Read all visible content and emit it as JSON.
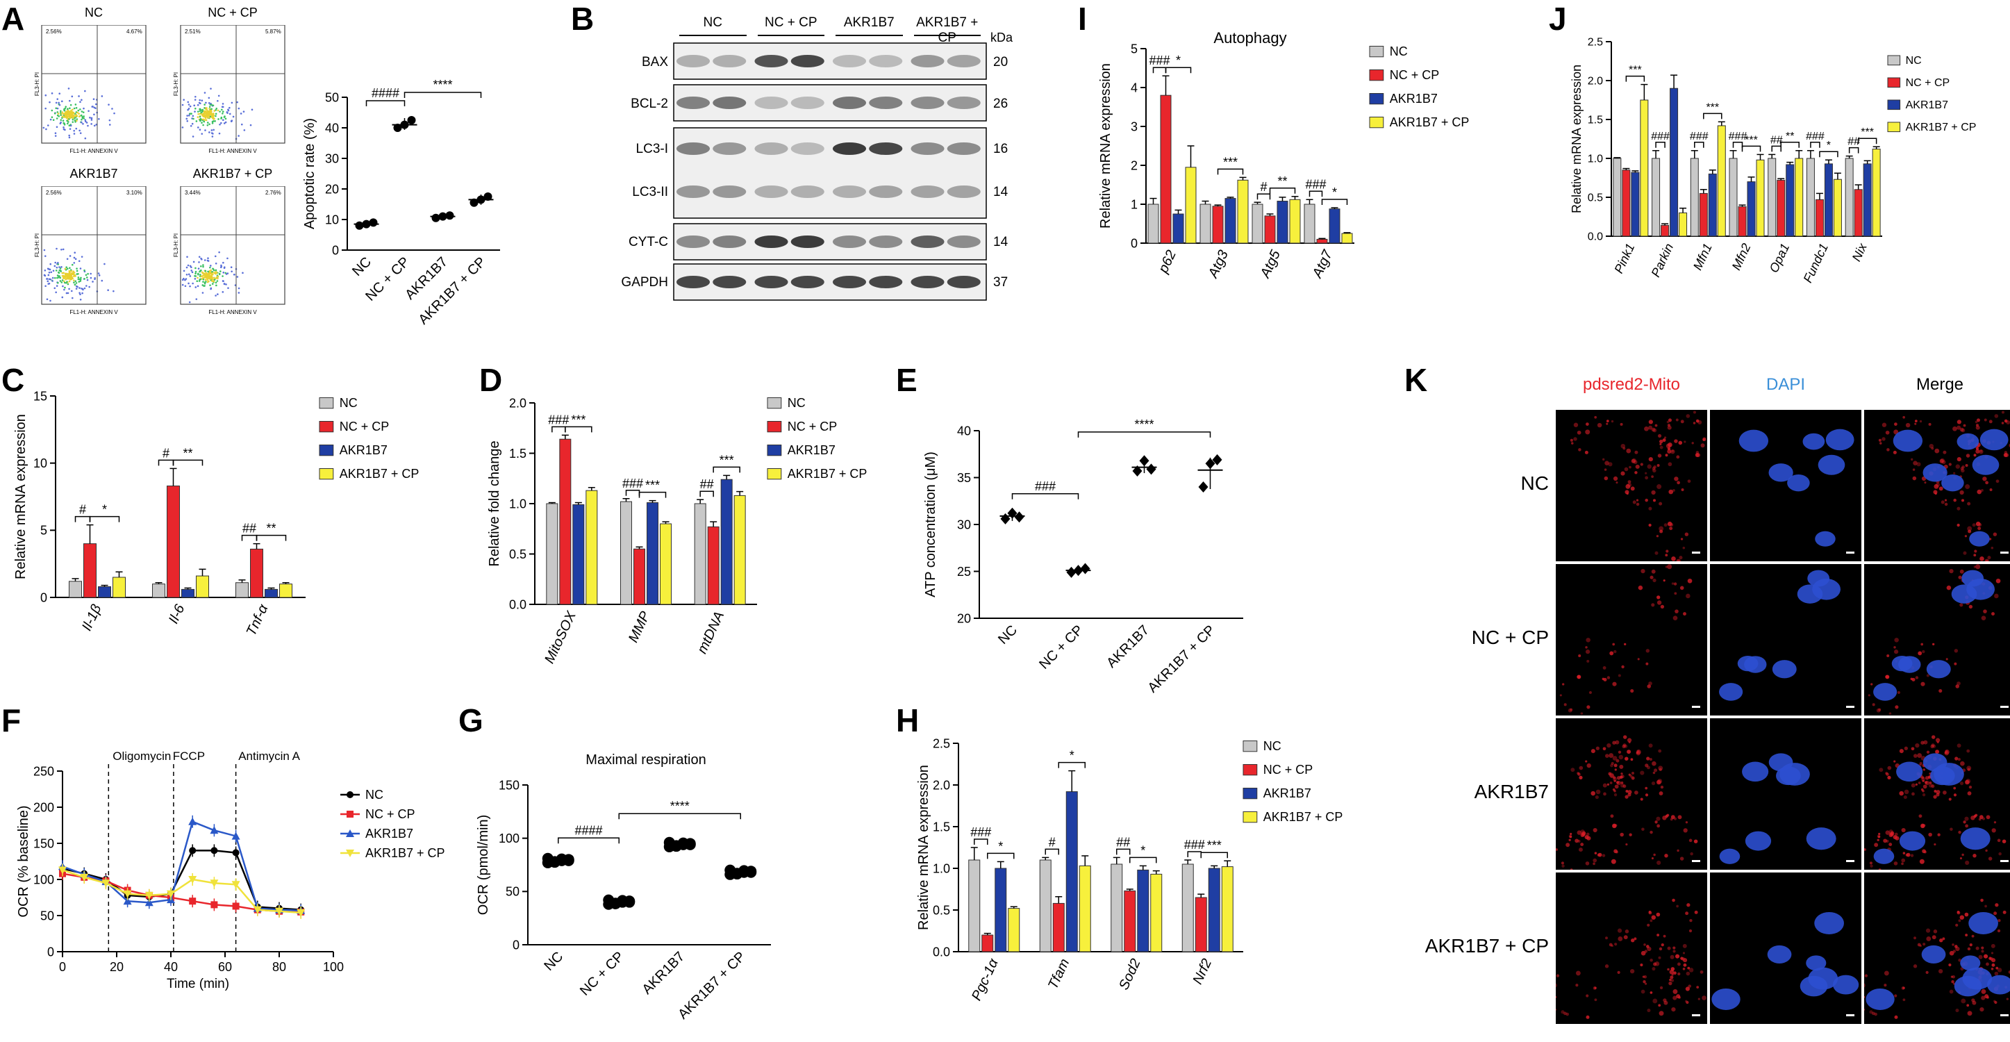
{
  "figure": {
    "panel_labels": [
      "A",
      "B",
      "C",
      "D",
      "E",
      "F",
      "G",
      "H",
      "I",
      "J",
      "K"
    ],
    "groups": [
      "NC",
      "NC + CP",
      "AKR1B7",
      "AKR1B7 + CP"
    ],
    "colors": {
      "NC": "#c8c8c8",
      "NC + CP": "#e8262c",
      "AKR1B7": "#1f3ea3",
      "AKR1B7 + CP": "#f7f03c"
    }
  },
  "panel_a": {
    "flow_titles": [
      "NC",
      "NC + CP",
      "AKR1B7",
      "AKR1B7 + CP"
    ],
    "flow_x_axis": "FL1-H: ANNEXIN V",
    "flow_y_axis": "FL3-H: PI",
    "flow_quadrants": [
      [
        "2.56%",
        "4.67%"
      ],
      [
        "2.51%",
        "5.87%"
      ],
      [
        "2.56%",
        "3.10%"
      ],
      [
        "3.44%",
        "2.76%"
      ]
    ],
    "chart_data": {
      "type": "scatter",
      "ylabel": "Apoptotic rate (%)",
      "ylim": [
        0,
        50
      ],
      "yticks": [
        0,
        10,
        20,
        30,
        40,
        50
      ],
      "categories": [
        "NC",
        "NC + CP",
        "AKR1B7",
        "AKR1B7 + CP"
      ],
      "values": [
        8.5,
        41,
        11,
        16.5
      ],
      "points": [
        [
          8,
          8.5,
          9
        ],
        [
          40,
          41,
          42.5
        ],
        [
          10.5,
          11,
          11.3
        ],
        [
          15.5,
          16.5,
          17.5
        ]
      ],
      "significance": [
        {
          "label": "####",
          "pair": [
            0,
            1
          ]
        },
        {
          "label": "****",
          "pair": [
            1,
            3
          ]
        }
      ]
    }
  },
  "panel_b": {
    "header_groups": [
      "NC",
      "NC + CP",
      "AKR1B7",
      "AKR1B7 + CP"
    ],
    "kda_label": "kDa",
    "blots": [
      {
        "name": "BAX",
        "kda": "20"
      },
      {
        "name": "BCL-2",
        "kda": "26"
      },
      {
        "name": "LC3-I",
        "kda": "16"
      },
      {
        "name": "LC3-II",
        "kda": "14"
      },
      {
        "name": "CYT-C",
        "kda": "14"
      },
      {
        "name": "GAPDH",
        "kda": "37"
      }
    ]
  },
  "panel_c": {
    "chart_data": {
      "type": "bar",
      "ylabel": "Relative mRNA expression",
      "ylim": [
        0,
        15
      ],
      "yticks": [
        0,
        5,
        10,
        15
      ],
      "categories": [
        "Il-1β",
        "Il-6",
        "Tnf-α"
      ],
      "series": [
        {
          "name": "NC",
          "values": [
            1.2,
            1.0,
            1.1
          ],
          "err": [
            0.2,
            0.1,
            0.2
          ]
        },
        {
          "name": "NC + CP",
          "values": [
            4.0,
            8.3,
            3.6
          ],
          "err": [
            1.4,
            1.3,
            0.4
          ]
        },
        {
          "name": "AKR1B7",
          "values": [
            0.8,
            0.6,
            0.6
          ],
          "err": [
            0.1,
            0.1,
            0.1
          ]
        },
        {
          "name": "AKR1B7 + CP",
          "values": [
            1.5,
            1.6,
            1.0
          ],
          "err": [
            0.4,
            0.5,
            0.1
          ]
        }
      ],
      "significance": [
        {
          "cat": 0,
          "pairs": [
            {
              "label": "#",
              "a": 0,
              "b": 1
            },
            {
              "label": "*",
              "a": 1,
              "b": 3
            }
          ]
        },
        {
          "cat": 1,
          "pairs": [
            {
              "label": "#",
              "a": 0,
              "b": 1
            },
            {
              "label": "**",
              "a": 1,
              "b": 3
            }
          ]
        },
        {
          "cat": 2,
          "pairs": [
            {
              "label": "##",
              "a": 0,
              "b": 1
            },
            {
              "label": "**",
              "a": 1,
              "b": 3
            }
          ]
        }
      ]
    }
  },
  "panel_d": {
    "chart_data": {
      "type": "bar",
      "ylabel": "Relative fold change",
      "ylim": [
        0.0,
        2.0
      ],
      "yticks": [
        "0.0",
        "0.5",
        "1.0",
        "1.5",
        "2.0"
      ],
      "categories": [
        "MitoSOX",
        "MMP",
        "mtDNA"
      ],
      "series": [
        {
          "name": "NC",
          "values": [
            1.0,
            1.02,
            1.0
          ],
          "err": [
            0.01,
            0.03,
            0.04
          ]
        },
        {
          "name": "NC + CP",
          "values": [
            1.64,
            0.55,
            0.77
          ],
          "err": [
            0.04,
            0.02,
            0.05
          ]
        },
        {
          "name": "AKR1B7",
          "values": [
            0.99,
            1.01,
            1.24
          ],
          "err": [
            0.02,
            0.02,
            0.04
          ]
        },
        {
          "name": "AKR1B7 + CP",
          "values": [
            1.13,
            0.8,
            1.08
          ],
          "err": [
            0.03,
            0.02,
            0.04
          ]
        }
      ],
      "significance": [
        {
          "cat": 0,
          "pairs": [
            {
              "label": "###",
              "a": 0,
              "b": 1
            },
            {
              "label": "***",
              "a": 1,
              "b": 3
            }
          ]
        },
        {
          "cat": 1,
          "pairs": [
            {
              "label": "###",
              "a": 0,
              "b": 1
            },
            {
              "label": "***",
              "a": 1,
              "b": 3
            }
          ]
        },
        {
          "cat": 2,
          "pairs": [
            {
              "label": "##",
              "a": 0,
              "b": 1
            },
            {
              "label": "***",
              "a": 1,
              "b": 3
            }
          ]
        }
      ]
    }
  },
  "panel_e": {
    "chart_data": {
      "type": "scatter",
      "ylabel": "ATP concentration (μM)",
      "ylim": [
        20,
        40
      ],
      "yticks": [
        20,
        25,
        30,
        35,
        40
      ],
      "categories": [
        "NC",
        "NC + CP",
        "AKR1B7",
        "AKR1B7 + CP"
      ],
      "values": [
        30.9,
        25.1,
        36.1,
        35.8
      ],
      "points": [
        [
          30.6,
          31.2,
          30.8
        ],
        [
          24.9,
          25.1,
          25.3
        ],
        [
          35.7,
          36.8,
          35.9
        ],
        [
          34.0,
          36.5,
          36.9
        ]
      ],
      "significance": [
        {
          "label": "###",
          "pair": [
            0,
            1
          ]
        },
        {
          "label": "****",
          "pair": [
            1,
            3
          ]
        }
      ]
    }
  },
  "panel_f": {
    "chart_data": {
      "type": "line",
      "xlabel": "Time (min)",
      "ylabel": "OCR (% baseline)",
      "xlim": [
        0,
        100
      ],
      "ylim": [
        0,
        250
      ],
      "xticks": [
        0,
        20,
        40,
        60,
        80,
        100
      ],
      "yticks": [
        0,
        50,
        100,
        150,
        200,
        250
      ],
      "annotations": [
        {
          "label": "Oligomycin",
          "x": 17
        },
        {
          "label": "FCCP",
          "x": 41
        },
        {
          "label": "Antimycin A",
          "x": 64
        }
      ],
      "x": [
        0,
        8,
        16,
        24,
        32,
        40,
        48,
        56,
        64,
        72,
        80,
        88
      ],
      "series": [
        {
          "name": "NC",
          "values": [
            115,
            108,
            100,
            78,
            76,
            80,
            140,
            140,
            137,
            62,
            60,
            58
          ]
        },
        {
          "name": "NC + CP",
          "values": [
            108,
            103,
            98,
            85,
            78,
            75,
            70,
            65,
            63,
            58,
            56,
            55
          ]
        },
        {
          "name": "AKR1B7",
          "values": [
            118,
            107,
            97,
            70,
            68,
            72,
            180,
            168,
            160,
            60,
            58,
            57
          ]
        },
        {
          "name": "AKR1B7 + CP",
          "values": [
            113,
            103,
            95,
            80,
            78,
            80,
            100,
            95,
            93,
            58,
            56,
            54
          ]
        }
      ]
    }
  },
  "panel_g": {
    "chart_data": {
      "type": "scatter",
      "title": "Maximal respiration",
      "ylabel": "OCR (pmol/min)",
      "ylim": [
        0,
        150
      ],
      "yticks": [
        0,
        50,
        100,
        150
      ],
      "categories": [
        "NC",
        "NC + CP",
        "AKR1B7",
        "AKR1B7 + CP"
      ],
      "values": [
        79,
        40,
        94,
        68
      ],
      "significance": [
        {
          "label": "####",
          "pair": [
            0,
            1
          ]
        },
        {
          "label": "****",
          "pair": [
            1,
            3
          ]
        }
      ]
    }
  },
  "panel_h": {
    "chart_data": {
      "type": "bar",
      "ylabel": "Relative mRNA expression",
      "ylim": [
        0.0,
        2.5
      ],
      "yticks": [
        "0.0",
        "0.5",
        "1.0",
        "1.5",
        "2.0",
        "2.5"
      ],
      "categories": [
        "Pgc-1α",
        "Tfam",
        "Sod2",
        "Nrf2"
      ],
      "series": [
        {
          "name": "NC",
          "values": [
            1.1,
            1.1,
            1.05,
            1.05
          ],
          "err": [
            0.15,
            0.03,
            0.08,
            0.05
          ]
        },
        {
          "name": "NC + CP",
          "values": [
            0.2,
            0.58,
            0.73,
            0.65
          ],
          "err": [
            0.02,
            0.08,
            0.02,
            0.04
          ]
        },
        {
          "name": "AKR1B7",
          "values": [
            1.0,
            1.92,
            0.98,
            1.0
          ],
          "err": [
            0.08,
            0.25,
            0.05,
            0.03
          ]
        },
        {
          "name": "AKR1B7 + CP",
          "values": [
            0.52,
            1.03,
            0.93,
            1.02
          ],
          "err": [
            0.02,
            0.12,
            0.04,
            0.07
          ]
        }
      ],
      "significance": [
        {
          "cat": 0,
          "pairs": [
            {
              "label": "###",
              "a": 0,
              "b": 1
            },
            {
              "label": "*",
              "a": 1,
              "b": 3
            }
          ]
        },
        {
          "cat": 1,
          "pairs": [
            {
              "label": "#",
              "a": 0,
              "b": 1
            },
            {
              "label": "*",
              "a": 1,
              "b": 3
            }
          ]
        },
        {
          "cat": 2,
          "pairs": [
            {
              "label": "##",
              "a": 0,
              "b": 1
            },
            {
              "label": "*",
              "a": 1,
              "b": 3
            }
          ]
        },
        {
          "cat": 3,
          "pairs": [
            {
              "label": "###",
              "a": 0,
              "b": 1
            },
            {
              "label": "***",
              "a": 1,
              "b": 3
            }
          ]
        }
      ]
    }
  },
  "panel_i": {
    "chart_data": {
      "type": "bar",
      "title": "Autophagy",
      "ylabel": "Relative mRNA expression",
      "ylim": [
        0,
        5
      ],
      "yticks": [
        0,
        1,
        2,
        3,
        4,
        5
      ],
      "categories": [
        "p62",
        "Atg3",
        "Atg5",
        "Atg7"
      ],
      "series": [
        {
          "name": "NC",
          "values": [
            1.0,
            1.0,
            1.0,
            1.0
          ],
          "err": [
            0.15,
            0.08,
            0.05,
            0.12
          ]
        },
        {
          "name": "NC + CP",
          "values": [
            3.8,
            0.95,
            0.7,
            0.1
          ],
          "err": [
            0.5,
            0.03,
            0.05,
            0.02
          ]
        },
        {
          "name": "AKR1B7",
          "values": [
            0.75,
            1.15,
            1.08,
            0.88
          ],
          "err": [
            0.1,
            0.03,
            0.1,
            0.03
          ]
        },
        {
          "name": "AKR1B7 + CP",
          "values": [
            1.95,
            1.62,
            1.12,
            0.25
          ],
          "err": [
            0.55,
            0.07,
            0.08,
            0.02
          ]
        }
      ],
      "significance": [
        {
          "cat": 0,
          "pairs": [
            {
              "label": "###",
              "a": 0,
              "b": 1
            },
            {
              "label": "*",
              "a": 1,
              "b": 3
            }
          ]
        },
        {
          "cat": 1,
          "pairs": [
            {
              "label": "***",
              "a": 1,
              "b": 3
            }
          ]
        },
        {
          "cat": 2,
          "pairs": [
            {
              "label": "#",
              "a": 0,
              "b": 1
            },
            {
              "label": "**",
              "a": 1,
              "b": 3
            }
          ]
        },
        {
          "cat": 3,
          "pairs": [
            {
              "label": "###",
              "a": 0,
              "b": 1
            },
            {
              "label": "*",
              "a": 1,
              "b": 3
            }
          ]
        }
      ]
    }
  },
  "panel_j": {
    "chart_data": {
      "type": "bar",
      "ylabel": "Relative mRNA expression",
      "ylim": [
        0.0,
        2.5
      ],
      "yticks": [
        "0.0",
        "0.5",
        "1.0",
        "1.5",
        "2.0",
        "2.5"
      ],
      "categories": [
        "Pink1",
        "Parkin",
        "Mfn1",
        "Mfn2",
        "Opa1",
        "Fundc1",
        "Nix"
      ],
      "series": [
        {
          "name": "NC",
          "values": [
            1.0,
            1.0,
            1.0,
            1.0,
            1.0,
            1.0,
            1.0
          ],
          "err": [
            0.01,
            0.1,
            0.1,
            0.1,
            0.05,
            0.1,
            0.03
          ]
        },
        {
          "name": "NC + CP",
          "values": [
            0.85,
            0.14,
            0.55,
            0.38,
            0.72,
            0.47,
            0.6
          ],
          "err": [
            0.02,
            0.02,
            0.05,
            0.02,
            0.02,
            0.08,
            0.06
          ]
        },
        {
          "name": "AKR1B7",
          "values": [
            0.82,
            1.9,
            0.8,
            0.7,
            0.92,
            0.93,
            0.93
          ],
          "err": [
            0.02,
            0.17,
            0.05,
            0.06,
            0.03,
            0.05,
            0.04
          ]
        },
        {
          "name": "AKR1B7 + CP",
          "values": [
            1.75,
            0.3,
            1.42,
            0.98,
            1.0,
            0.73,
            1.12
          ],
          "err": [
            0.2,
            0.06,
            0.05,
            0.07,
            0.1,
            0.08,
            0.03
          ]
        }
      ],
      "significance": [
        {
          "cat": 0,
          "pairs": [
            {
              "label": "***",
              "a": 1,
              "b": 3
            }
          ]
        },
        {
          "cat": 1,
          "pairs": [
            {
              "label": "###",
              "a": 0,
              "b": 1
            }
          ]
        },
        {
          "cat": 2,
          "pairs": [
            {
              "label": "###",
              "a": 0,
              "b": 1
            },
            {
              "label": "***",
              "a": 1,
              "b": 3
            }
          ]
        },
        {
          "cat": 3,
          "pairs": [
            {
              "label": "###",
              "a": 0,
              "b": 1
            },
            {
              "label": "***",
              "a": 1,
              "b": 3
            }
          ]
        },
        {
          "cat": 4,
          "pairs": [
            {
              "label": "##",
              "a": 0,
              "b": 1
            },
            {
              "label": "**",
              "a": 1,
              "b": 3
            }
          ]
        },
        {
          "cat": 5,
          "pairs": [
            {
              "label": "###",
              "a": 0,
              "b": 1
            },
            {
              "label": "*",
              "a": 1,
              "b": 3
            }
          ]
        },
        {
          "cat": 6,
          "pairs": [
            {
              "label": "##",
              "a": 0,
              "b": 1
            },
            {
              "label": "***",
              "a": 1,
              "b": 3
            }
          ]
        }
      ]
    }
  },
  "panel_k": {
    "columns": [
      "pdsred2-Mito",
      "DAPI",
      "Merge"
    ],
    "column_colors": [
      "#e8262c",
      "#3a8fd8",
      "#000000"
    ],
    "rows": [
      "NC",
      "NC + CP",
      "AKR1B7",
      "AKR1B7 + CP"
    ]
  }
}
